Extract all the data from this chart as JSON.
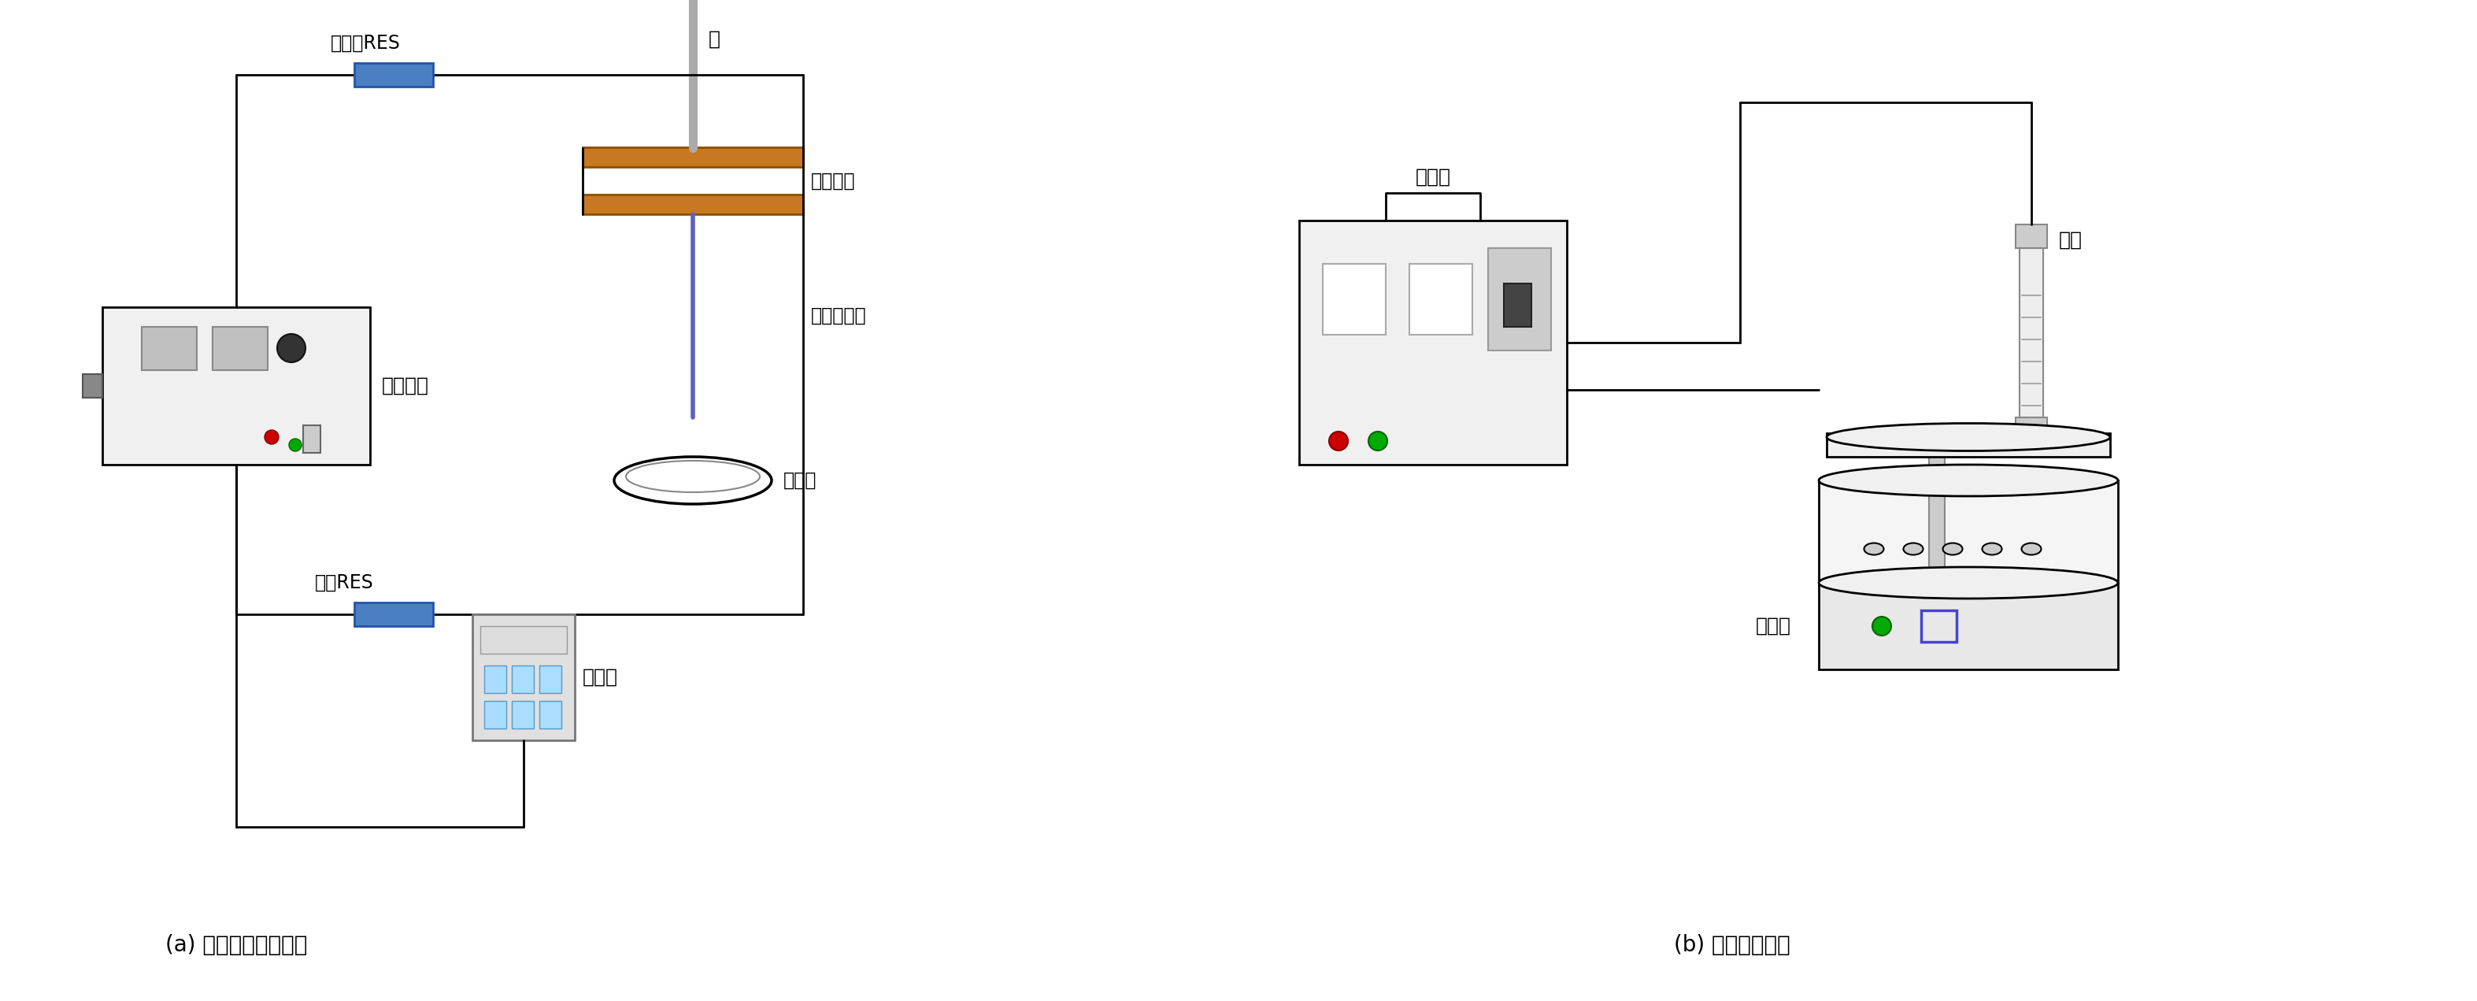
{
  "fig_width": 31.46,
  "fig_height": 12.71,
  "bg_color": "#ffffff",
  "label_a": "(a) 辉光放电等离子体",
  "label_b": "(b) 光化学反应仪",
  "text_ballast": "镇流器RES",
  "text_check": "检验RES",
  "text_power": "稳电压源",
  "text_multimeter": "万用表",
  "text_needle": "针",
  "text_cathode": "阴极循环",
  "text_plasma": "等离子射流",
  "text_reactor_a": "反应器",
  "text_controller": "控制器",
  "text_xenon": "氙灯",
  "text_reactor_b": "反应器",
  "line_color": "#000000",
  "ballast_color": "#4a7fc1",
  "needle_color": "#aaaaaa",
  "cathode_color": "#c87820",
  "plasma_color": "#6060c0",
  "box_fill": "#e8e8e8",
  "blue_indicator": "#4a7fc1",
  "red_dot": "#cc0000",
  "green_dot": "#00aa00"
}
